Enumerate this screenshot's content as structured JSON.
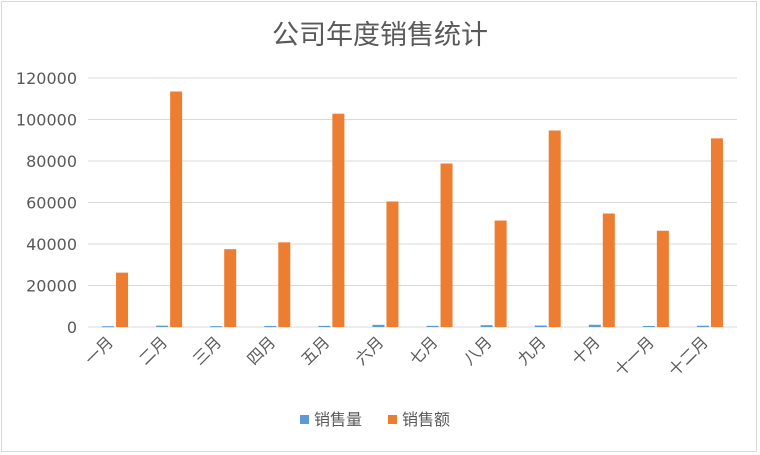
{
  "chart_data": {
    "type": "bar",
    "title": "公司年度销售统计",
    "xlabel": "",
    "ylabel": "",
    "categories": [
      "一月",
      "二月",
      "三月",
      "四月",
      "五月",
      "六月",
      "七月",
      "八月",
      "九月",
      "十月",
      "十一月",
      "十二月"
    ],
    "series": [
      {
        "name": "销售量",
        "color": "#5b9bd5",
        "values": [
          380,
          650,
          420,
          470,
          550,
          1050,
          560,
          880,
          720,
          1080,
          510,
          610
        ]
      },
      {
        "name": "销售额",
        "color": "#ed7d31",
        "values": [
          26200,
          113500,
          37500,
          40800,
          102800,
          60500,
          78800,
          51300,
          94700,
          54700,
          46400,
          90900
        ]
      }
    ],
    "ylim": [
      0,
      120000
    ],
    "yticks": [
      0,
      20000,
      40000,
      60000,
      80000,
      100000,
      120000
    ],
    "grid": true,
    "legend_position": "bottom",
    "gridline_color": "#d9d9d9"
  }
}
